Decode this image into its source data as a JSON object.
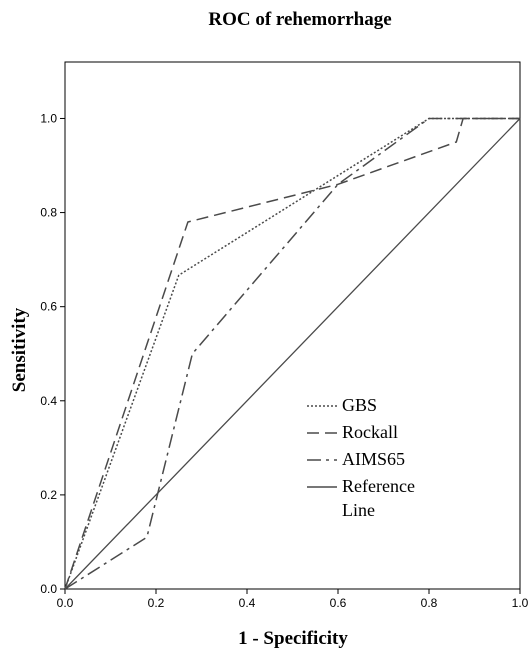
{
  "chart_data": {
    "type": "line",
    "title": "ROC of  rehemorrhage",
    "xlabel": "1 - Specificity",
    "ylabel": "Sensitivity",
    "xlim": [
      0,
      1
    ],
    "ylim": [
      0,
      1.12
    ],
    "xticks": [
      "0.0",
      "0.2",
      "0.4",
      "0.6",
      "0.8",
      "1.0"
    ],
    "yticks": [
      "0.0",
      "0.2",
      "0.4",
      "0.6",
      "0.8",
      "1.0"
    ],
    "grid": false,
    "legend_position": "bottom-right",
    "series": [
      {
        "name": "GBS",
        "style": "dotted",
        "points": [
          [
            0,
            0
          ],
          [
            0.25,
            0.667
          ],
          [
            0.8,
            1.0
          ],
          [
            1.0,
            1.0
          ]
        ]
      },
      {
        "name": "Rockall",
        "style": "dashed",
        "points": [
          [
            0,
            0
          ],
          [
            0.27,
            0.78
          ],
          [
            0.6,
            0.86
          ],
          [
            0.86,
            0.95
          ],
          [
            0.875,
            1.0
          ],
          [
            1.0,
            1.0
          ]
        ]
      },
      {
        "name": "AIMS65",
        "style": "dashdot",
        "points": [
          [
            0,
            0
          ],
          [
            0.18,
            0.11
          ],
          [
            0.28,
            0.5
          ],
          [
            0.6,
            0.86
          ],
          [
            0.8,
            1.0
          ],
          [
            1.0,
            1.0
          ]
        ]
      },
      {
        "name": "Reference Line",
        "legend_lines": [
          "Reference",
          "Line"
        ],
        "style": "solid",
        "points": [
          [
            0,
            0
          ],
          [
            1,
            1
          ]
        ]
      }
    ]
  }
}
